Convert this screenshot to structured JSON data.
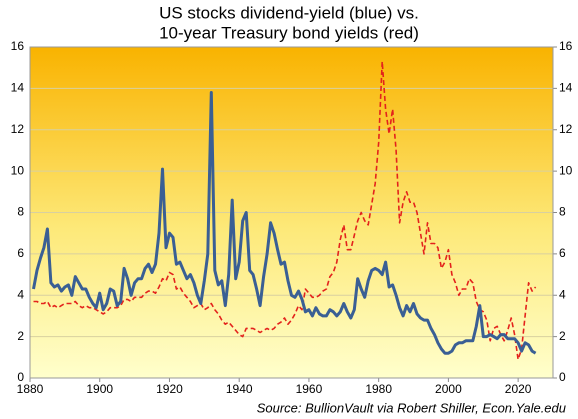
{
  "chart_data": {
    "type": "line",
    "title": "US stocks dividend-yield (blue) vs.",
    "subtitle": "10-year Treasury bond yields (red)",
    "source": "Source: BullionVault  via Robert Shiller, Econ.Yale.edu",
    "x": [
      1881,
      1882,
      1883,
      1884,
      1885,
      1886,
      1887,
      1888,
      1889,
      1890,
      1891,
      1892,
      1893,
      1894,
      1895,
      1896,
      1897,
      1898,
      1899,
      1900,
      1901,
      1902,
      1903,
      1904,
      1905,
      1906,
      1907,
      1908,
      1909,
      1910,
      1911,
      1912,
      1913,
      1914,
      1915,
      1916,
      1917,
      1918,
      1919,
      1920,
      1921,
      1922,
      1923,
      1924,
      1925,
      1926,
      1927,
      1928,
      1929,
      1930,
      1931,
      1932,
      1933,
      1934,
      1935,
      1936,
      1937,
      1938,
      1939,
      1940,
      1941,
      1942,
      1943,
      1944,
      1945,
      1946,
      1947,
      1948,
      1949,
      1950,
      1951,
      1952,
      1953,
      1954,
      1955,
      1956,
      1957,
      1958,
      1959,
      1960,
      1961,
      1962,
      1963,
      1964,
      1965,
      1966,
      1967,
      1968,
      1969,
      1970,
      1971,
      1972,
      1973,
      1974,
      1975,
      1976,
      1977,
      1978,
      1979,
      1980,
      1981,
      1982,
      1983,
      1984,
      1985,
      1986,
      1987,
      1988,
      1989,
      1990,
      1991,
      1992,
      1993,
      1994,
      1995,
      1996,
      1997,
      1998,
      1999,
      2000,
      2001,
      2002,
      2003,
      2004,
      2005,
      2006,
      2007,
      2008,
      2009,
      2010,
      2011,
      2012,
      2013,
      2014,
      2015,
      2016,
      2017,
      2018,
      2019,
      2020,
      2021,
      2022,
      2023,
      2024,
      2025
    ],
    "series": [
      {
        "name": "US stocks dividend-yield",
        "color": "#3a5f94",
        "dash": false,
        "values": [
          4.3,
          5.2,
          5.8,
          6.3,
          7.2,
          4.6,
          4.4,
          4.5,
          4.2,
          4.4,
          4.5,
          4.0,
          4.9,
          4.6,
          4.3,
          4.3,
          3.9,
          3.6,
          3.4,
          4.1,
          3.3,
          3.6,
          4.3,
          4.2,
          3.5,
          3.7,
          5.3,
          4.8,
          4.0,
          4.6,
          4.8,
          4.8,
          5.3,
          5.5,
          5.1,
          5.5,
          7.0,
          10.1,
          6.3,
          7.0,
          6.8,
          5.5,
          5.6,
          5.2,
          4.8,
          5.0,
          4.6,
          4.0,
          3.6,
          4.7,
          6.0,
          13.8,
          5.2,
          4.5,
          4.7,
          3.5,
          5.0,
          8.6,
          4.8,
          5.6,
          7.6,
          8.0,
          5.2,
          5.0,
          4.3,
          3.5,
          4.9,
          6.0,
          7.5,
          7.0,
          6.2,
          5.5,
          5.6,
          4.7,
          4.0,
          3.9,
          4.2,
          3.8,
          3.2,
          3.3,
          3.0,
          3.4,
          3.1,
          3.0,
          3.0,
          3.3,
          3.2,
          3.0,
          3.2,
          3.6,
          3.2,
          2.9,
          3.3,
          4.8,
          4.3,
          3.9,
          4.7,
          5.2,
          5.3,
          5.2,
          5.0,
          5.6,
          4.4,
          4.5,
          4.0,
          3.4,
          3.0,
          3.5,
          3.2,
          3.6,
          3.1,
          2.9,
          2.8,
          2.8,
          2.4,
          2.1,
          1.7,
          1.4,
          1.2,
          1.2,
          1.3,
          1.6,
          1.7,
          1.7,
          1.8,
          1.8,
          1.8,
          2.5,
          3.5,
          2.0,
          2.0,
          2.1,
          2.0,
          1.9,
          2.1,
          2.1,
          1.9,
          1.9,
          1.9,
          1.7,
          1.3,
          1.7,
          1.6,
          1.3,
          1.2
        ]
      },
      {
        "name": "10-year Treasury bond yields",
        "color": "#e3221c",
        "dash": true,
        "values": [
          3.7,
          3.7,
          3.6,
          3.6,
          3.7,
          3.4,
          3.5,
          3.4,
          3.5,
          3.6,
          3.6,
          3.6,
          3.7,
          3.5,
          3.4,
          3.5,
          3.4,
          3.4,
          3.3,
          3.2,
          3.1,
          3.2,
          3.4,
          3.4,
          3.4,
          3.5,
          3.8,
          3.8,
          3.7,
          3.9,
          3.9,
          3.9,
          4.1,
          4.2,
          4.2,
          4.1,
          4.4,
          4.8,
          4.7,
          5.1,
          5.0,
          4.3,
          4.4,
          4.1,
          3.9,
          3.7,
          3.4,
          3.5,
          3.6,
          3.3,
          3.4,
          3.6,
          3.3,
          3.1,
          2.8,
          2.6,
          2.7,
          2.5,
          2.3,
          2.1,
          2.0,
          2.4,
          2.4,
          2.4,
          2.3,
          2.2,
          2.3,
          2.4,
          2.3,
          2.4,
          2.6,
          2.7,
          2.9,
          2.6,
          2.8,
          3.1,
          3.5,
          3.3,
          4.3,
          4.1,
          3.9,
          3.9,
          4.0,
          4.2,
          4.3,
          4.9,
          5.1,
          5.6,
          6.7,
          7.4,
          6.2,
          6.2,
          6.9,
          7.6,
          8.0,
          7.6,
          7.4,
          8.4,
          9.4,
          11.4,
          15.3,
          13.0,
          11.8,
          13.0,
          11.0,
          7.5,
          8.5,
          9.0,
          8.5,
          8.5,
          8.0,
          7.0,
          6.0,
          7.5,
          6.5,
          6.5,
          6.3,
          5.3,
          5.6,
          6.2,
          5.0,
          4.6,
          4.0,
          4.3,
          4.3,
          4.8,
          4.6,
          3.7,
          3.3,
          3.2,
          2.8,
          1.8,
          2.4,
          2.5,
          2.1,
          1.8,
          2.3,
          2.9,
          2.1,
          0.9,
          1.4,
          3.0,
          4.6,
          4.2,
          4.4
        ]
      }
    ],
    "xlim": [
      1880,
      2030
    ],
    "xticks": [
      1880,
      1900,
      1920,
      1940,
      1960,
      1980,
      2000,
      2020
    ],
    "ylim": [
      0,
      16
    ],
    "yticks": [
      0,
      2,
      4,
      6,
      8,
      10,
      12,
      14,
      16
    ],
    "y2lim": [
      0,
      16
    ],
    "y2ticks": [
      0,
      2,
      4,
      6,
      8,
      10,
      12,
      14,
      16
    ],
    "grid": true
  }
}
